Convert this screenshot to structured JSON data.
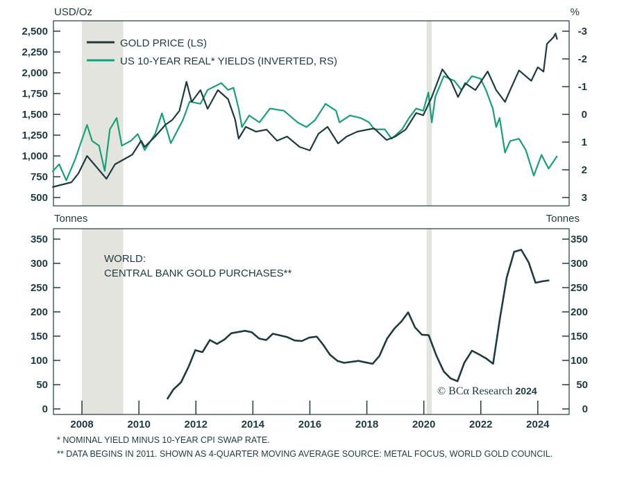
{
  "colors": {
    "gold": "#1d3a3f",
    "yields": "#16a07a",
    "shade": "#e4e4de",
    "text": "#1d3a3f"
  },
  "chart_data": [
    {
      "type": "line",
      "left_axis_label": "USD/Oz",
      "right_axis_label": "%",
      "left_ylim": [
        500,
        2500
      ],
      "right_ylim": [
        -3,
        3
      ],
      "right_inverted": true,
      "left_ticks": [
        "2,500",
        "2,250",
        "2,000",
        "1,750",
        "1,500",
        "1,250",
        "1,000",
        "750",
        "500"
      ],
      "left_tick_values": [
        2500,
        2250,
        2000,
        1750,
        1500,
        1250,
        1000,
        750,
        500
      ],
      "right_ticks": [
        "-3",
        "-2",
        "-1",
        "0",
        "1",
        "2",
        "3"
      ],
      "right_tick_values": [
        -3,
        -2,
        -1,
        0,
        1,
        2,
        3
      ],
      "xlim": [
        2007,
        2025.1
      ],
      "grid": false,
      "legend_position": "top-left",
      "shaded_periods": [
        [
          2008.0,
          2009.45
        ],
        [
          2020.1,
          2020.28
        ]
      ],
      "series": [
        {
          "name": "GOLD PRICE (LS)",
          "axis": "left",
          "x": [
            2006.96,
            2007.63,
            2007.88,
            2008.18,
            2008.49,
            2008.86,
            2009.16,
            2009.47,
            2009.77,
            2010.08,
            2010.2,
            2010.57,
            2010.93,
            2011.17,
            2011.42,
            2011.67,
            2011.85,
            2012.16,
            2012.41,
            2012.77,
            2013.13,
            2013.38,
            2013.5,
            2013.75,
            2014.11,
            2014.48,
            2014.85,
            2015.2,
            2015.64,
            2016.0,
            2016.3,
            2016.62,
            2016.99,
            2017.29,
            2017.66,
            2018.02,
            2018.26,
            2018.69,
            2019.0,
            2019.36,
            2019.73,
            2019.98,
            2020.28,
            2020.65,
            2020.95,
            2021.2,
            2021.45,
            2021.81,
            2022.24,
            2022.54,
            2022.85,
            2023.03,
            2023.34,
            2023.77,
            2024.0,
            2024.2,
            2024.32,
            2024.56,
            2024.62,
            2024.68
          ],
          "y": [
            625,
            683,
            792,
            1000,
            875,
            725,
            900,
            958,
            1017,
            1183,
            1108,
            1233,
            1375,
            1433,
            1542,
            1892,
            1650,
            1792,
            1567,
            1792,
            1683,
            1433,
            1208,
            1350,
            1292,
            1317,
            1183,
            1233,
            1108,
            1067,
            1267,
            1350,
            1150,
            1233,
            1292,
            1317,
            1331,
            1192,
            1233,
            1317,
            1517,
            1489,
            1708,
            2042,
            1903,
            1708,
            1875,
            1792,
            2017,
            1792,
            1650,
            1792,
            2028,
            1903,
            2067,
            2014,
            2347,
            2431,
            2472,
            2400
          ]
        },
        {
          "name": "US 10-YEAR REAL* YIELDS (INVERTED, RS)",
          "axis": "right",
          "x": [
            2006.96,
            2007.2,
            2007.45,
            2007.76,
            2008.18,
            2008.36,
            2008.6,
            2008.8,
            2008.98,
            2009.22,
            2009.4,
            2009.71,
            2009.96,
            2010.2,
            2010.57,
            2010.81,
            2011.12,
            2011.54,
            2011.78,
            2012.16,
            2012.41,
            2012.89,
            2013.13,
            2013.32,
            2013.5,
            2013.62,
            2013.87,
            2014.23,
            2014.6,
            2015.09,
            2015.57,
            2015.88,
            2016.18,
            2016.55,
            2016.92,
            2017.04,
            2017.41,
            2017.78,
            2018.08,
            2018.26,
            2018.63,
            2018.87,
            2019.24,
            2019.48,
            2019.73,
            2019.98,
            2020.16,
            2020.28,
            2020.4,
            2020.7,
            2021.07,
            2021.32,
            2021.69,
            2021.99,
            2022.18,
            2022.42,
            2022.54,
            2022.66,
            2022.85,
            2023.03,
            2023.34,
            2023.58,
            2023.86,
            2024.13,
            2024.38,
            2024.68
          ],
          "y": [
            2.07,
            1.8,
            2.38,
            1.63,
            0.38,
            0.96,
            1.13,
            2.04,
            0.54,
            0.13,
            1.13,
            0.96,
            0.71,
            1.29,
            0.71,
            -0.04,
            1.04,
            0.21,
            -0.46,
            -0.38,
            -0.88,
            -1.13,
            -0.88,
            -0.96,
            -0.21,
            0.46,
            0.04,
            0.29,
            -0.21,
            -0.13,
            0.29,
            0.46,
            0.21,
            -0.38,
            -0.13,
            0.29,
            0.04,
            0.13,
            0.29,
            0.54,
            0.54,
            0.88,
            0.54,
            0.13,
            -0.21,
            -0.13,
            -0.79,
            0.29,
            -0.63,
            -1.38,
            -1.21,
            -0.88,
            -1.38,
            -1.29,
            -0.88,
            -0.21,
            0.46,
            0.13,
            1.38,
            0.96,
            0.88,
            1.29,
            2.21,
            1.46,
            1.96,
            1.5
          ]
        }
      ]
    },
    {
      "type": "line",
      "left_axis_label": "Tonnes",
      "right_axis_label": "Tonnes",
      "title": "WORLD:",
      "subtitle": "CENTRAL BANK GOLD PURCHASES**",
      "ylim": [
        0,
        350
      ],
      "ticks": [
        "350",
        "300",
        "250",
        "200",
        "150",
        "100",
        "50",
        "0"
      ],
      "tick_values": [
        350,
        300,
        250,
        200,
        150,
        100,
        50,
        0
      ],
      "xlim": [
        2007,
        2025.1
      ],
      "x_ticks": [
        "2008",
        "2010",
        "2012",
        "2014",
        "2016",
        "2018",
        "2020",
        "2022",
        "2024"
      ],
      "x_tick_values": [
        2008,
        2010,
        2012,
        2014,
        2016,
        2018,
        2020,
        2022,
        2024
      ],
      "grid": false,
      "shaded_periods": [
        [
          2008.0,
          2009.45
        ],
        [
          2020.1,
          2020.28
        ]
      ],
      "series": [
        {
          "x": [
            2010.99,
            2011.21,
            2011.48,
            2011.75,
            2011.98,
            2012.23,
            2012.49,
            2012.74,
            2013.0,
            2013.24,
            2013.72,
            2013.96,
            2014.22,
            2014.47,
            2014.7,
            2015.21,
            2015.47,
            2015.72,
            2015.98,
            2016.24,
            2016.46,
            2016.7,
            2016.97,
            2017.2,
            2017.71,
            2017.95,
            2018.2,
            2018.44,
            2018.71,
            2018.97,
            2019.21,
            2019.45,
            2019.69,
            2019.93,
            2020.17,
            2020.44,
            2020.7,
            2020.94,
            2021.18,
            2021.42,
            2021.69,
            2021.95,
            2022.19,
            2022.43,
            2022.67,
            2022.91,
            2023.17,
            2023.42,
            2023.68,
            2023.92,
            2024.16,
            2024.4
          ],
          "y": [
            20,
            40,
            55,
            88,
            121,
            117,
            142,
            134,
            143,
            156,
            161,
            158,
            145,
            142,
            155,
            148,
            141,
            140,
            147,
            149,
            133,
            112,
            99,
            95,
            99,
            96,
            93,
            109,
            145,
            166,
            180,
            199,
            168,
            153,
            152,
            110,
            77,
            63,
            57,
            95,
            120,
            112,
            104,
            93,
            186,
            271,
            324,
            328,
            302,
            260,
            263,
            265
          ]
        }
      ]
    }
  ],
  "copyright": "© BCα Research",
  "copyright_year": "2024",
  "footnotes": [
    "* NOMINAL YIELD MINUS 10-YEAR CPI SWAP RATE.",
    "** DATA BEGINS IN 2011. SHOWN AS 4-QUARTER MOVING AVERAGE SOURCE: METAL FOCUS, WORLD GOLD COUNCIL."
  ]
}
